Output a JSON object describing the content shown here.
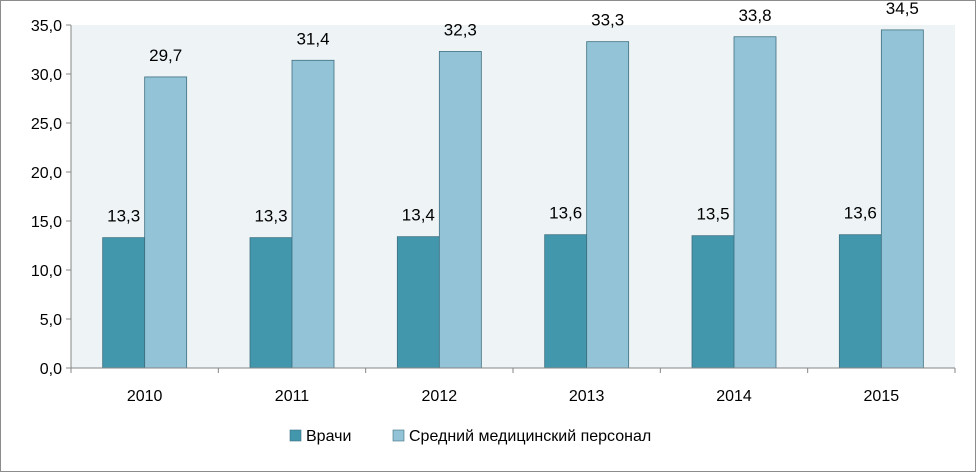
{
  "chart_data": {
    "type": "bar",
    "title": "",
    "xlabel": "",
    "ylabel": "",
    "categories": [
      "2010",
      "2011",
      "2012",
      "2013",
      "2014",
      "2015"
    ],
    "series": [
      {
        "name": "Врачи",
        "values": [
          13.3,
          13.3,
          13.4,
          13.6,
          13.5,
          13.6
        ],
        "labels": [
          "13,3",
          "13,3",
          "13,4",
          "13,6",
          "13,5",
          "13,6"
        ],
        "color": "#4397ad"
      },
      {
        "name": "Средний медицинский персонал",
        "values": [
          29.7,
          31.4,
          32.3,
          33.3,
          33.8,
          34.5
        ],
        "labels": [
          "29,7",
          "31,4",
          "32,3",
          "33,3",
          "33,8",
          "34,5"
        ],
        "color": "#93c3d6"
      }
    ],
    "ylim": [
      0,
      35
    ],
    "yticks": [
      0,
      5,
      10,
      15,
      20,
      25,
      30,
      35
    ],
    "ytick_labels": [
      "0,0",
      "5,0",
      "10,0",
      "15,0",
      "20,0",
      "25,0",
      "30,0",
      "35,0"
    ],
    "grid": false,
    "legend": "bottom",
    "plot_background": "#eef4f6"
  }
}
